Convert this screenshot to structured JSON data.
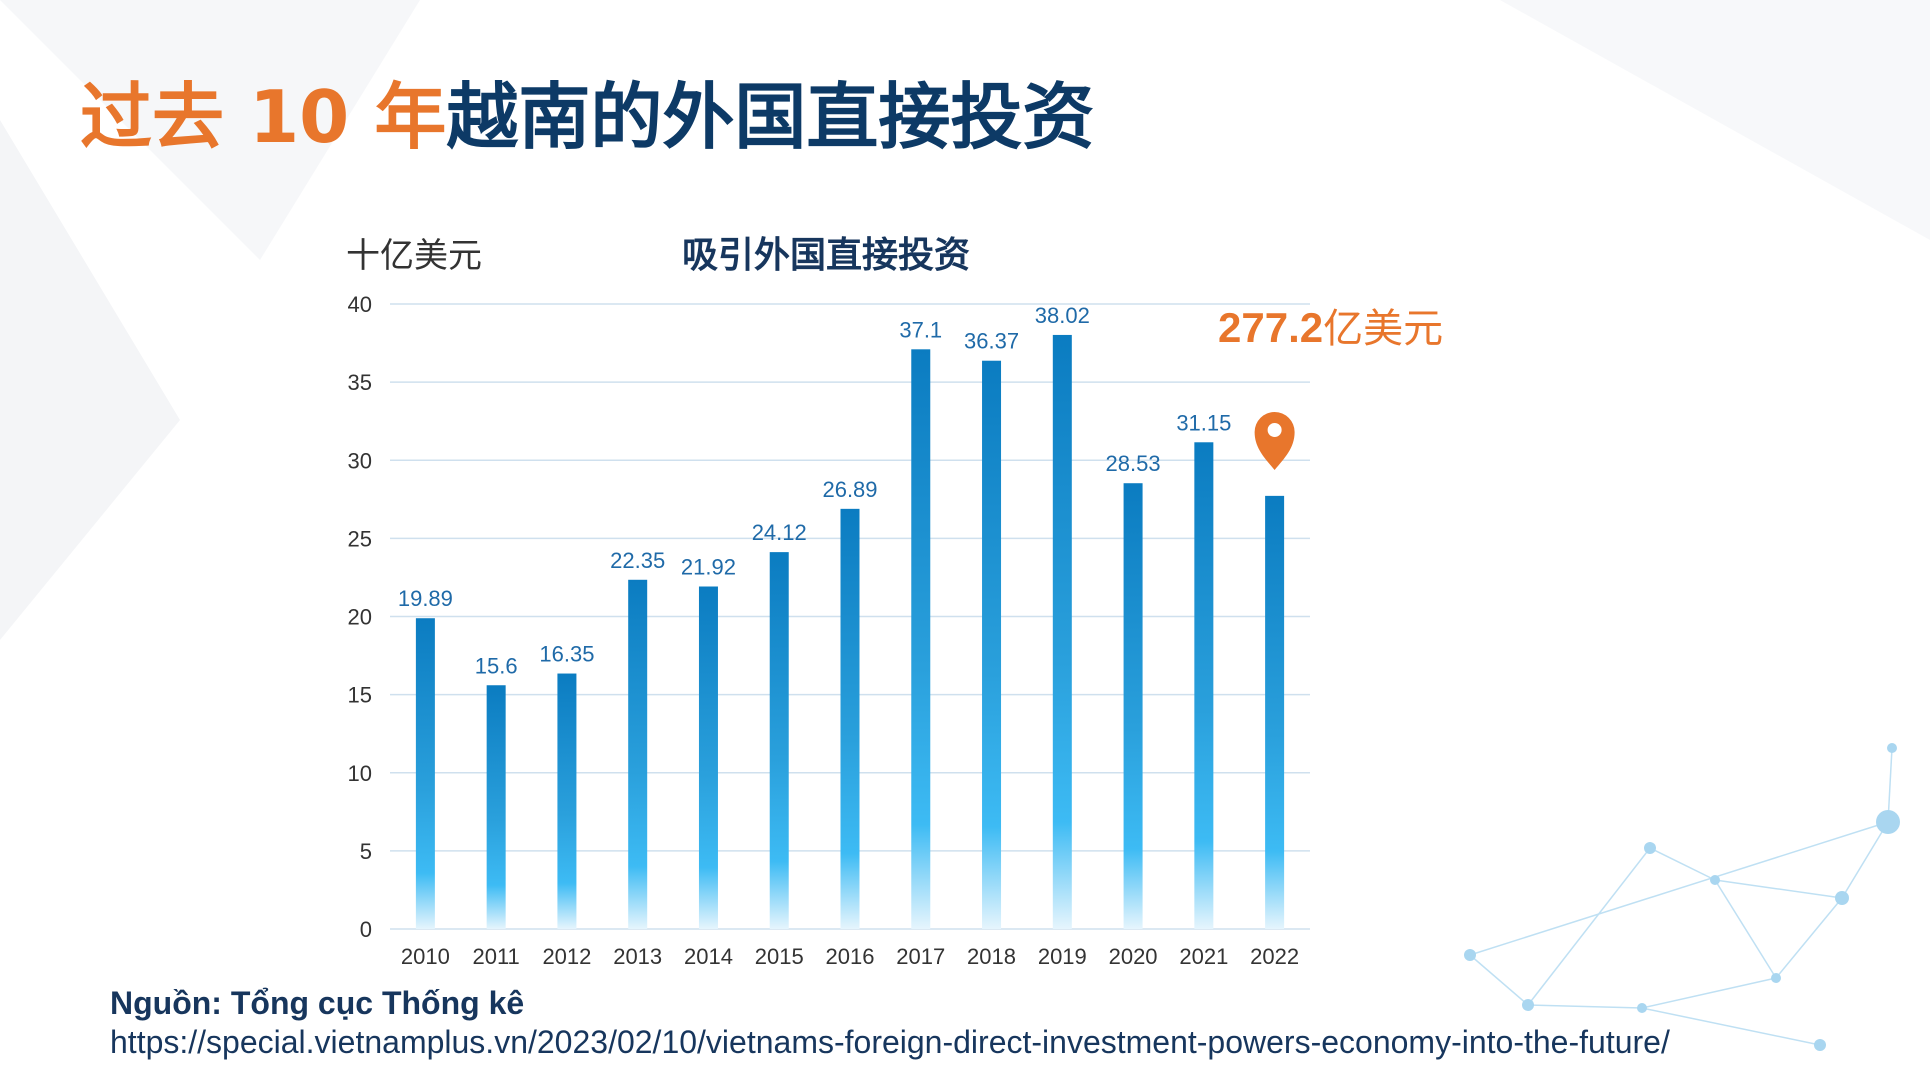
{
  "slide": {
    "title_accent": "过去 10 年",
    "title_main": "越南的外国直接投资",
    "source_label": "Nguồn: Tổng cục Thống kê",
    "source_url": "https://special.vietnamplus.vn/2023/02/10/vietnams-foreign-direct-investment-powers-economy-into-the-future/"
  },
  "callout": {
    "value": "277.2",
    "unit": "亿美元",
    "icon": "map-pin-icon",
    "color": "#e8762c"
  },
  "colors": {
    "bar_top": "#0b7cc1",
    "bar_mid": "#3dbbf4",
    "grid": "#cfe0ee",
    "label": "#1f6aa8"
  },
  "chart_data": {
    "type": "bar",
    "title": "吸引外国直接投资",
    "ylabel": "十亿美元",
    "xlabel": "",
    "categories": [
      "2010",
      "2011",
      "2012",
      "2013",
      "2014",
      "2015",
      "2016",
      "2017",
      "2018",
      "2019",
      "2020",
      "2021",
      "2022"
    ],
    "values": [
      19.89,
      15.6,
      16.35,
      22.35,
      21.92,
      24.12,
      26.89,
      37.1,
      36.37,
      38.02,
      28.53,
      31.15,
      27.72
    ],
    "data_labels": [
      "19.89",
      "15.6",
      "16.35",
      "22.35",
      "21.92",
      "24.12",
      "26.89",
      "37.1",
      "36.37",
      "38.02",
      "28.53",
      "31.15",
      ""
    ],
    "yticks": [
      0,
      5,
      10,
      15,
      20,
      25,
      30,
      35,
      40
    ],
    "ylim": [
      0,
      40
    ],
    "grid": true,
    "legend": "none"
  }
}
